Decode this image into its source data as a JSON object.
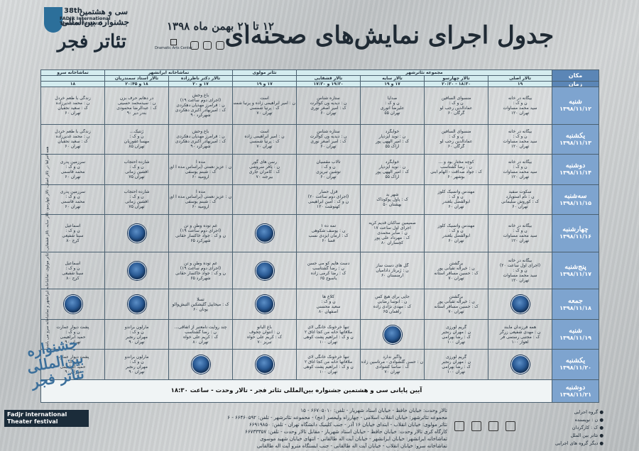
{
  "header": {
    "title": "جدول اجرای نمایش‌های صحنه‌ای",
    "dates": "۱۲ تا ۲۱ بهمن ماه ۱۳۹۸",
    "logo_line1": "سی و هشتمین",
    "logo_line2": "جشنواره بین‌المللی",
    "logo_line3": "تئاتر فجر",
    "logo_num": "38th",
    "logo_en": "FADJR International Theater Festival",
    "dac": "Dramatic Arts Center"
  },
  "table": {
    "corner_place": "مکان",
    "corner_time": "زمان",
    "venues": [
      {
        "name": "مجموعه تئاترشهر",
        "span": 4
      },
      {
        "name": "تئاتر مولوی",
        "span": 1
      },
      {
        "name": "تماشاخانه ایرانشهر",
        "span": 2
      },
      {
        "name": "تماشاخانه سرو",
        "span": 1
      }
    ],
    "halls": [
      "تالار اصلی",
      "تالار چهارسو",
      "تالار سایه",
      "تالار قشقایی",
      "",
      "تالار دکتر ناظرزاده",
      "تالار استاد سمندریان",
      ""
    ],
    "times": [
      "۱۹",
      "۱۸:۳۰ - ۲۰:۳۰",
      "۱۷ و ۱۹",
      "۱۹:۳۰ و ۱۷:۳۰",
      "۱۷ و ۱۹",
      "۱۷ و ۲۰",
      "۱۸ و ۲۰:۴۵",
      "۱۸"
    ],
    "days": [
      {
        "name": "شنبه",
        "date": "۱۳۹۸/۱۱/۱۲",
        "cells": [
          [
            "بیگانه در خانه",
            "ن و ک :",
            "سید محمد مساوات",
            "تهران ۱۲۰"
          ],
          [
            "منسوای السافین",
            "ن و ک :",
            "عمادالدین رجب لو",
            "گرگان ۶۰"
          ],
          [
            "صدایا",
            "ن و ک :",
            "علیرضا انوری",
            "تهران ۵۵"
          ],
          [
            "ستاره شناس",
            "ن : دیدیه ون کوالرت",
            "ک : امیر اصغر نوری",
            "تهران ۶۰"
          ],
          [
            "است",
            "ن : امیر ابراهیمی زاده و پرنیا شمسی",
            "ک : پرنیا شمسی",
            "تهران ۷۰"
          ],
          [
            "باغ وحش",
            "(اجرای دوم ساعت ۱۹)",
            "ن : فرامرز مهدیان دهکردی",
            "ک : امیربهادر اکبری دهکردی",
            "شهرکرد ۹۰"
          ],
          [
            "در دهانم حرف بزن",
            "ن : سیدمحمد حسینی",
            "ک : عبدالرضا محمودی",
            "بندر دیر ۹۰"
          ],
          [
            "زندگی با طعم خردل",
            "ن : محمد غدیرزاده",
            "ک : سعید نجفیان",
            "تهران ۶۰"
          ]
        ]
      },
      {
        "name": "یکشنبه",
        "date": "۱۳۹۸/۱۱/۱۳",
        "cells": [
          [
            "بیگانه در خانه",
            "ن و ک :",
            "سید محمد مساوات",
            "تهران ۱۲۰"
          ],
          [
            "منسوای السافین",
            "ن و ک :",
            "عمادالدین رجب لو",
            "گرگان ۶۰"
          ],
          [
            "خوابگرد",
            "ن : نوید ایزدیار",
            "ک : امیر الههی پور",
            "اراک ۵۵"
          ],
          [
            "ستاره شناس",
            "ن : دیدیه ون کوالرت",
            "ک : امیر اصغر نوری",
            "تهران ۶۰"
          ],
          [
            "است",
            "ن : امیر ابراهیمی زاده",
            "ک : پرنیا شمسی",
            "تهران ۷۰"
          ],
          [
            "باغ وحش",
            "ن : فرامرز مهدیان دهکردی",
            "ک : امیربهادر اکبری دهکردی",
            "شهرکرد ۹۰"
          ],
          [
            "ژنتیک...",
            "ن و ک :",
            "مهسا غفوریان",
            "تهران ۸۵"
          ],
          [
            "زندگی با طعم خردل",
            "ن : محمد غدیرزاده",
            "ک : سعید نجفیان",
            "تهران ۶۰"
          ]
        ]
      },
      {
        "name": "دوشنبه",
        "date": "۱۳۹۸/۱۱/۱۴",
        "cells": [
          [
            "بیگانه در خانه",
            "ن و ک :",
            "سید محمد مساوات",
            "تهران ۱۲۰"
          ],
          [
            "کوچه مختار بود و ...",
            "ن : رضا گشتاسب",
            "ک : جواد صداقت - الهام ابنی",
            "بوشهر ۶۰"
          ],
          [
            "خوابگرد",
            "ن : نوید ایزدیار",
            "ک : امیر الههی پور",
            "اراک ۵۵"
          ],
          [
            "تالاب مقسیان",
            "ن و ک :",
            "توشین تبریزی",
            "تهران ۶۰"
          ],
          [
            "رسن های گور",
            "ن : یاقر سروشی",
            "ک : کامران جاری",
            "بیرجند ۷۰"
          ],
          [
            "مده آ",
            "ن : عزیز نعمتی (براساس مده آ اوریید)",
            "ک : شبنم یوسفی",
            "ارومیه ۶۰"
          ],
          [
            "شازده احتجاب",
            "ن و ک :",
            "افشین زمانی",
            "تهران ۷۵"
          ],
          [
            "سرزمین پدری",
            "ن و ک :",
            "محمد قاسمی",
            "تهران ۶۰"
          ]
        ]
      },
      {
        "name": "سه‌شنبه",
        "date": "۱۳۹۸/۱۱/۱۵",
        "cells": [
          [
            "سکوت سفید",
            "ن : نام استوپارد",
            "ک : کوروش سلیمانی",
            "تهران ۶۰"
          ],
          [
            "مهندس واتسیک کلوز",
            "ن و ک :",
            "ابوالفضل بلغندر",
            "تهران ۶۰"
          ],
          [
            "شهر بد",
            "ک : پاول پوکوداک",
            "بهشتان ۵۰"
          ],
          [
            "قزل حصار",
            "(اجرای دوم ساعت ۲۰)",
            "ن و ک : امین ابراهیمی",
            "کهنوشت ۱۲۰"
          ],
          [
            "",
            "",
            ""
          ],
          [
            "مده آ",
            "ن : عزیز نعمتی (براساس مده آ اوریید)",
            "ک : شبنم یوسفی",
            "ارومیه ۶۰"
          ],
          [
            "شازده احتجاب",
            "ن و ک :",
            "افشین زمانی",
            "تهران ۷۵"
          ],
          [
            "سرزمین پدری",
            "ن و ک :",
            "محمد قاسمی",
            "تهران ۶۰"
          ]
        ]
      },
      {
        "name": "چهارشنبه",
        "date": "۱۳۹۸/۱۱/۱۶",
        "cells": [
          [
            "بیگانه در خانه",
            "ن و ک :",
            "سید محمد مساوات",
            "تهران ۱۲۰"
          ],
          [
            "مهندس واتسیک کلوز",
            "ن و ک :",
            "ابوالفضل بلغندر",
            "تهران ۶۰"
          ],
          [
            "صمیمین ساکنان قدیم کریه",
            "اجرای اول ساعت ۱۷",
            "ن : صابر محمدی",
            "ک : مهرداد علی پور",
            "کچساران ۸۰"
          ],
          [
            "تمه ده ۱",
            "ن : یوسف شکوهی",
            "ک : آرمان ایزدی نسب",
            "فسا ۶۰"
          ],
          [
            "",
            "CIRCLE"
          ],
          [
            "غم توده وطن و تن",
            "(اجرای دوم ساعت ۱۹)",
            "ن و ک : جواد خاکسار حقانی",
            "شهرکرد ۶۵"
          ],
          [
            "",
            "CIRCLE"
          ],
          [
            "اسماعیل",
            "ن و ک :",
            "سینا شفیعی",
            "کرج ۸۰"
          ]
        ]
      },
      {
        "name": "پنج‌شنبه",
        "date": "۱۳۹۸/۱۱/۱۷",
        "cells": [
          [
            "بیگانه در خانه",
            "(اجرای اول ساعت ۲۰)",
            "ن و ک :",
            "سید محمد مساوات",
            "تهران ۱۲۰"
          ],
          [
            "برگشتن",
            "ن : خیراله تقیانی پور",
            "ک : حسین مسافر آستانه",
            "تهران ۷۰"
          ],
          [
            "گل های دست ساز",
            "ن : ژبرناز دادامیان",
            "ارمنستان ۶۰"
          ],
          [
            "دست هایم کو می حسن",
            "ن : رضا گشتاسب",
            "ک : رضا کرمی زاده",
            "یاسوج ۶۵"
          ],
          [
            "",
            "CIRCLE"
          ],
          [
            "غم توده وطن و تن",
            "(اجرای دوم ساعت ۱۹)",
            "ن و ک : جواد خاکسار حقانی",
            "شهرکرد ۶۵"
          ],
          [
            "",
            "CIRCLE"
          ],
          [
            "اسماعیل",
            "ن و ک :",
            "سینا شفیعی",
            "کرج ۸۰"
          ]
        ]
      },
      {
        "name": "جمعه",
        "date": "۱۳۹۸/۱۱/۱۸",
        "cells": [
          [
            "",
            "CIRCLE"
          ],
          [
            "برگشتن",
            "ن : خیراله تقیانی پور",
            "ک : حسین مسافر آستانه",
            "تهران ۷۰"
          ],
          [
            "جایی برای هیچ کس",
            "ن : آنوسا رضایی",
            "ک : مهدی نژادی زاده",
            "راهمان ۶۵"
          ],
          [
            "کلاغ ها",
            "ن و ک :",
            "سعید محسنی",
            "اصفهان ۸۰"
          ],
          [
            "",
            "CIRCLE"
          ],
          [
            "تسلا",
            "ک : میخاییل گلیشکین التیش‌والو",
            "یونان ۶۰"
          ],
          [
            "",
            "CIRCLE"
          ],
          [
            "",
            "CIRCLE"
          ]
        ]
      },
      {
        "name": "شنبه",
        "date": "۱۳۹۸/۱۱/۱۹",
        "cells": [
          [
            "همه فرزندان مایند",
            "ن : مهدی شفیعی زرگر",
            "ک : مجتبی رستمی فر",
            "اهواز ۱۰۰"
          ],
          [
            "گریم لورزی",
            "ن : مهران رنجبر",
            "ک : رضا بهرامی",
            "تهران ۱۰۰"
          ],
          [
            "",
            "CIRCLE"
          ],
          [
            "تنها خرخونک خانگی لای",
            "ملاقاتها خانه من کجا اتاق ۲",
            "ن و ک : ابراهیم پشت کوهی",
            "تهران ۱۰۰"
          ],
          [
            "باغ البانو",
            "ن : آنتوان چخوف",
            "ک : کریم علی خواه",
            "تبریز ۷۰"
          ],
          [
            "چند روایت نامعتبر از اتفاقی...",
            "ن : رضا گشتاسب",
            "ک : کریم علی خواه",
            "تهران ۸۰"
          ],
          [
            "مارلون براندو",
            "ن و ک :",
            "مهران رنجبر",
            "تهران ۹۰"
          ],
          [
            "پشت دیوار عمارت",
            "ن و ک :",
            "حمید ابراهیمی",
            "تهران ۹۰"
          ]
        ]
      },
      {
        "name": "یکشنبه",
        "date": "۱۳۹۸/۱۱/۲۰",
        "cells": [
          [
            "",
            "CIRCLE"
          ],
          [
            "گریم لورزی",
            "ن : مهران رنجبر",
            "ک : رضا بهرامی",
            "تهران ۱۰۰"
          ],
          [
            "واگیر ندارد",
            "ن : حسن گلشوادی - مرتاسین زاده",
            "ک : ساسا کشوادی",
            "تهران ۷۰"
          ],
          [
            "تنها خرخونک خانگی لای",
            "ملاقاتها خانه من کجا اتاق ۲",
            "ن و ک : ابراهیم پشت کوهی",
            "تهران ۱۰۰"
          ],
          [
            "",
            "CIRCLE"
          ],
          [
            "",
            "CIRCLE"
          ],
          [
            "مارلون براندو",
            "ن و ک :",
            "مهران رنجبر",
            "تهران ۹۰"
          ],
          [
            "پشت دیوار عمارت",
            "ن و ک :",
            "حمید ابراهیمی",
            "تهران ۹۰"
          ]
        ]
      }
    ],
    "closing_day": "دوشنبه",
    "closing_date": "۱۳۹۸/۱۱/۲۱",
    "closing_text": "آیین پایانی سی و هشتمین جشنواره بین‌المللی تئاتر فجر - تالار وحدت - ساعت ۱۸:۳۰"
  },
  "side_note": "همه اجراها در تالار اصلی، تالار چهارسو، تالار سایه، تالار قشقایی، تئاتر مولوی، تماشاخانه ایرانشهر و تماشاخانه سرو می باشد.",
  "corner": {
    "fa": "جشنواره بین‌المللی تئاتر فجر",
    "en": "Fadjr international Theater festival"
  },
  "footer": [
    "تالار وحدت: خیابان حافظ - خیابان استاد شهریار - تلفن: ۶۶۷۰۵۰۱۰ - ۱۵",
    "مجموعه تئاترشهر: خیابان انقلاب اسلامی - چهارراه ولیعصر (عج) - مجموعه تئاترشهر - تلفن: ۶۶۴۶۰۵۹۲ - ۶",
    "تئاتر مولوی: خیابان انقلاب - ابتدای خیابان ۱۶ آذر - جنب کلینیک دانشگاه تهران - تلفن: ۶۶۹۱۹۸۵۰",
    "کارگاه کری تالار وحدت: خیابان حافظ - خیابان استاد شهریار - مقابل تالار وحدت - تلفن: ۶۶۷۳۳۳۵۷",
    "تماشاخانه ایرانشهر: خیابان ایرانشهر - خیابان آیت اله طالقانی - انتهای خیابان شهید موسوی",
    "تماشاخانه سرو: خیابان انقلاب - خیابان آیت اله طالقانی - جنب ایستگاه مترو آیت اله طالقانی",
    "پردیس تئاتر شهرزاد: خیابان کریم خان - نبش خیابان نوفل لوشاتو - تلفن: ۶۶۷۳۴۵۹"
  ],
  "legend": [
    "گروه اجرایی",
    "ن : نویسنده",
    "ک : کارگردان",
    "تئاتر بین الملل",
    "دیگر گروه های اجرایی"
  ]
}
